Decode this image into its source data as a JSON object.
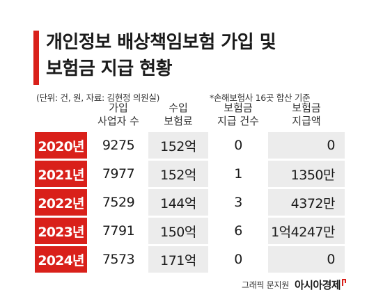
{
  "title": {
    "line1": "개인정보 배상책임보험 가입 및",
    "line2": "보험금 지급 현황"
  },
  "unit_note": "(단위: 건, 원, 자료: 김현정 의원실)",
  "footnote": "*손해보험사 16곳 합산 기준",
  "columns": [
    {
      "line1": "가입",
      "line2": "사업자 수"
    },
    {
      "line1": "수입",
      "line2": "보험료"
    },
    {
      "line1": "보험금",
      "line2": "지급 건수"
    },
    {
      "line1": "보험금",
      "line2": "지급액"
    }
  ],
  "rows": [
    {
      "year": "2020년",
      "subscribers": "9275",
      "premium": "152억",
      "claims": "0",
      "payout": "0"
    },
    {
      "year": "2021년",
      "subscribers": "7977",
      "premium": "152억",
      "claims": "1",
      "payout": "1350만"
    },
    {
      "year": "2022년",
      "subscribers": "7529",
      "premium": "144억",
      "claims": "3",
      "payout": "4372만"
    },
    {
      "year": "2023년",
      "subscribers": "7791",
      "premium": "150억",
      "claims": "6",
      "payout": "1억4247만"
    },
    {
      "year": "2024년",
      "subscribers": "7573",
      "premium": "171억",
      "claims": "0",
      "payout": "0"
    }
  ],
  "footer": {
    "credit": "그래픽 문지원",
    "brand": "아시아경제"
  },
  "colors": {
    "accent": "#d9201a",
    "shade": "#ececec"
  }
}
